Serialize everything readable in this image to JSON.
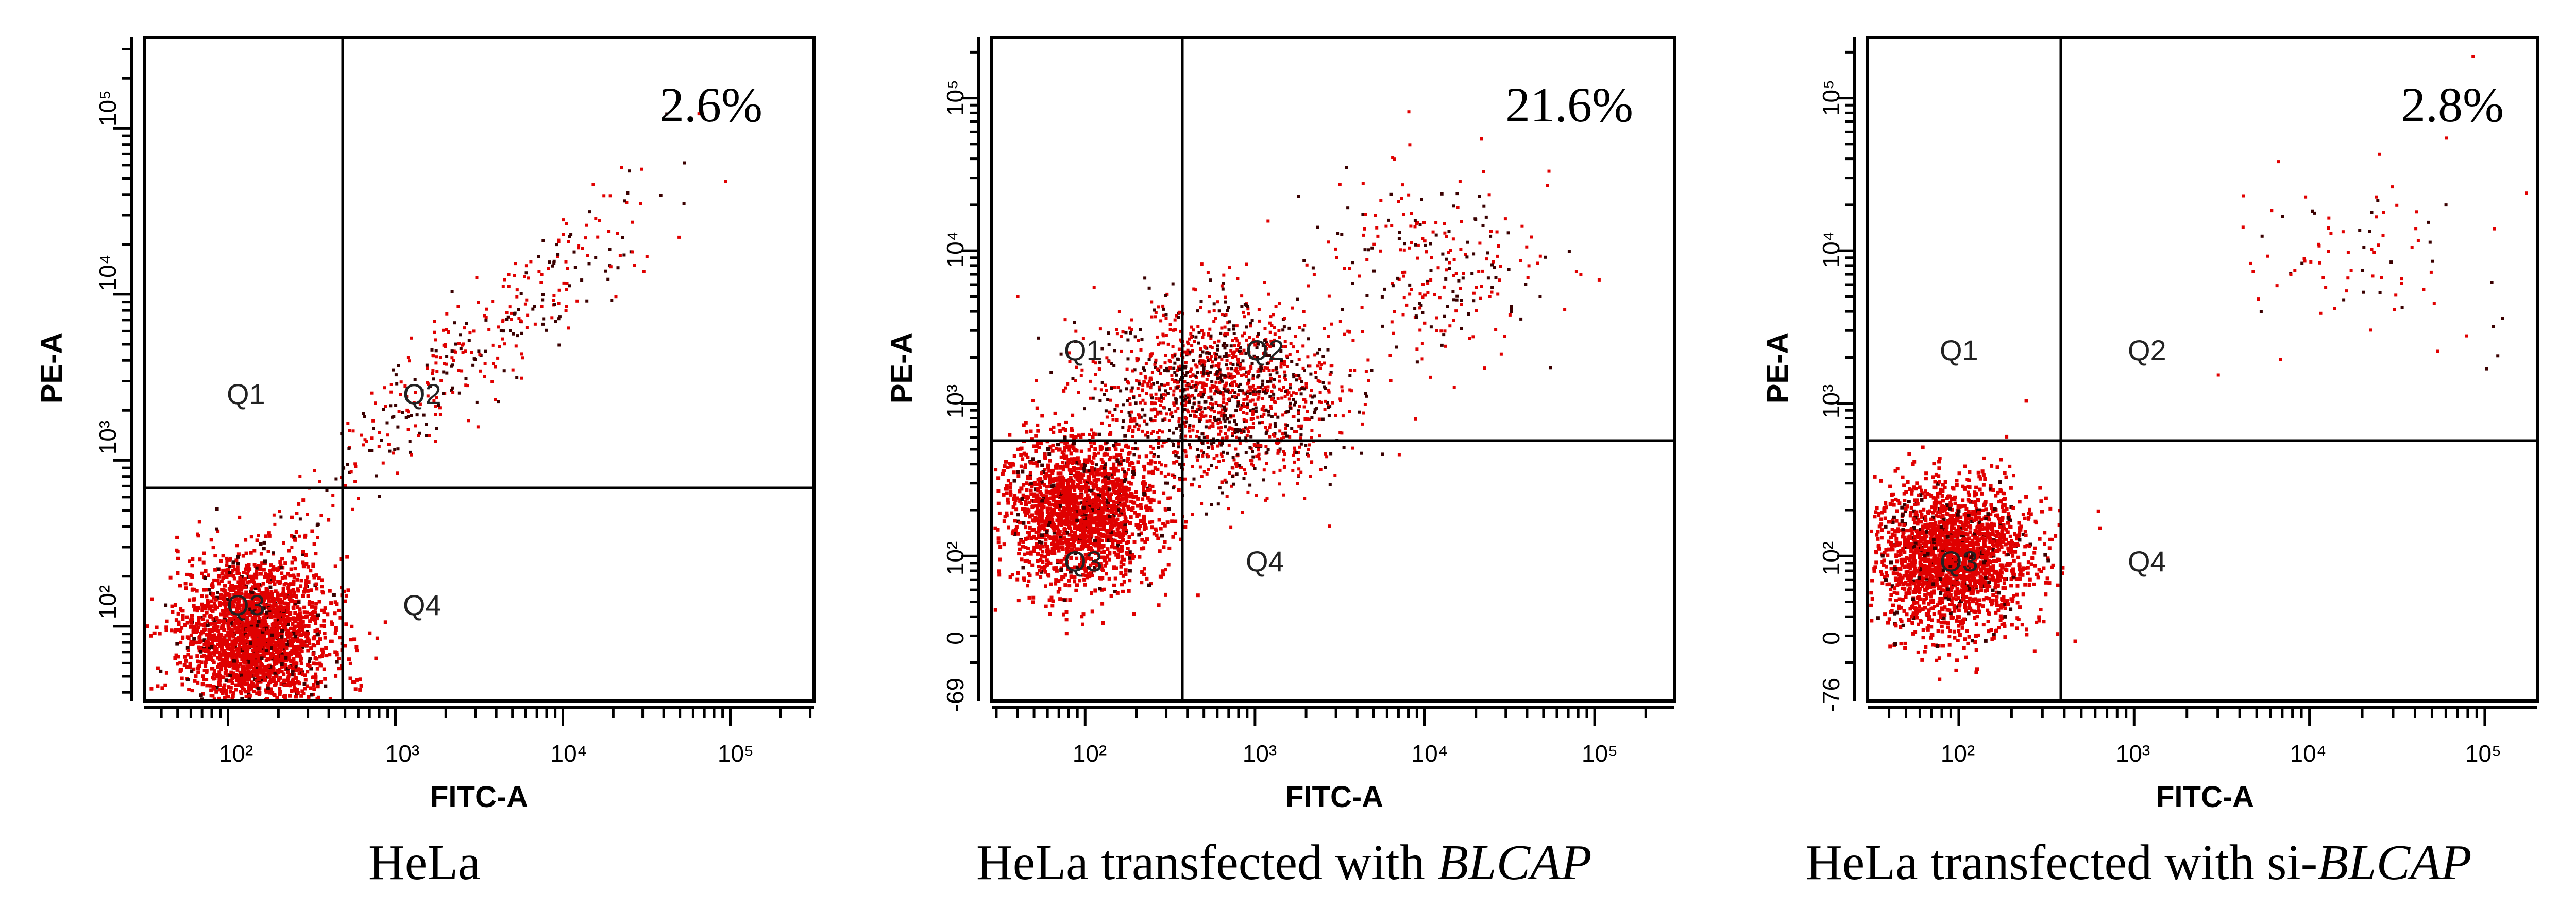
{
  "colors": {
    "dots": "#e00000",
    "dark_dots": "#3a0000",
    "axes": "#000000"
  },
  "chart_data": [
    {
      "type": "scatter",
      "title": "",
      "xlabel": "FITC-A",
      "ylabel": "PE-A",
      "x_scale": "log",
      "y_scale": "log",
      "x_ticks": [
        "10²",
        "10³",
        "10⁴",
        "10⁵"
      ],
      "y_ticks": [
        "10²",
        "10³",
        "10⁴",
        "10⁵"
      ],
      "quadrants": [
        "Q1",
        "Q2",
        "Q3",
        "Q4"
      ],
      "gate_x": 400,
      "gate_y": 600,
      "q2_percent": "2.6%",
      "caption": "HeLa",
      "caption_italic": "",
      "populations": [
        {
          "name": "Q3 main",
          "x_center": 140,
          "y_center": 90,
          "count": 2400
        },
        {
          "name": "Q2 diagonal",
          "x_center": 2500,
          "y_center": 4000,
          "count": 380
        }
      ]
    },
    {
      "type": "scatter",
      "title": "",
      "xlabel": "FITC-A",
      "ylabel": "PE-A",
      "x_scale": "log",
      "y_scale": "log",
      "x_ticks": [
        "10²",
        "10³",
        "10⁴",
        "10⁵"
      ],
      "y_ticks": [
        "-69",
        "0",
        "10²",
        "10³",
        "10⁴",
        "10⁵"
      ],
      "quadrants": [
        "Q1",
        "Q2",
        "Q3",
        "Q4"
      ],
      "gate_x": 380,
      "gate_y": 700,
      "q2_percent": "21.6%",
      "caption": "HeLa transfected with ",
      "caption_italic": "BLCAP",
      "populations": [
        {
          "name": "Q3 main",
          "x_center": 90,
          "y_center": 200,
          "count": 1900
        },
        {
          "name": "Q1/Q2 cluster",
          "x_center": 600,
          "y_center": 1200,
          "count": 1500
        },
        {
          "name": "Q2 upper cluster",
          "x_center": 11000,
          "y_center": 8500,
          "count": 260
        }
      ]
    },
    {
      "type": "scatter",
      "title": "",
      "xlabel": "FITC-A",
      "ylabel": "PE-A",
      "x_scale": "log",
      "y_scale": "log",
      "x_ticks": [
        "10²",
        "10³",
        "10⁴",
        "10⁵"
      ],
      "y_ticks": [
        "-76",
        "0",
        "10²",
        "10³",
        "10⁴",
        "10⁵"
      ],
      "quadrants": [
        "Q1",
        "Q2",
        "Q3",
        "Q4"
      ],
      "gate_x": 380,
      "gate_y": 700,
      "q2_percent": "2.8%",
      "caption": "HeLa transfected with si-",
      "caption_italic": "BLCAP",
      "populations": [
        {
          "name": "Q3 main",
          "x_center": 90,
          "y_center": 100,
          "count": 2300
        },
        {
          "name": "Q2 upper cluster",
          "x_center": 18000,
          "y_center": 10000,
          "count": 90
        }
      ]
    }
  ]
}
